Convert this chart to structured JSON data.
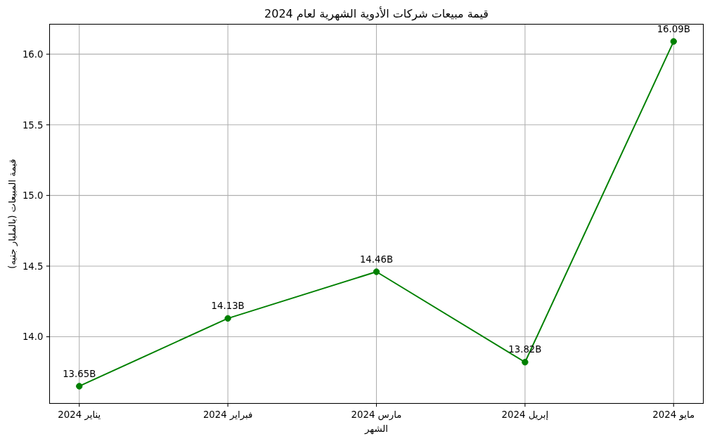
{
  "chart_data": {
    "type": "line",
    "title": "قيمة مبيعات شركات الأدوية الشهرية لعام 2024",
    "xlabel": "الشهر",
    "ylabel": "قيمة المبيعات (بالمليار جنيه)",
    "categories": [
      "يناير 2024",
      "فبراير 2024",
      "مارس 2024",
      "إبريل 2024",
      "مايو 2024"
    ],
    "series": [
      {
        "color": "#008000",
        "values": [
          13.65,
          14.13,
          14.46,
          13.82,
          16.09
        ],
        "value_labels": [
          "13.65B",
          "14.13B",
          "14.46B",
          "13.82B",
          "16.09B"
        ]
      }
    ],
    "ylim": [
      13.528,
      16.212
    ],
    "yticks": [
      {
        "value": 14,
        "label": "14.0"
      },
      {
        "value": 14.5,
        "label": "14.5"
      },
      {
        "value": 15,
        "label": "15.0"
      },
      {
        "value": 15.5,
        "label": "15.5"
      },
      {
        "value": 16,
        "label": "16.0"
      }
    ],
    "grid": true,
    "marker": "circle",
    "line_style": "solid"
  }
}
